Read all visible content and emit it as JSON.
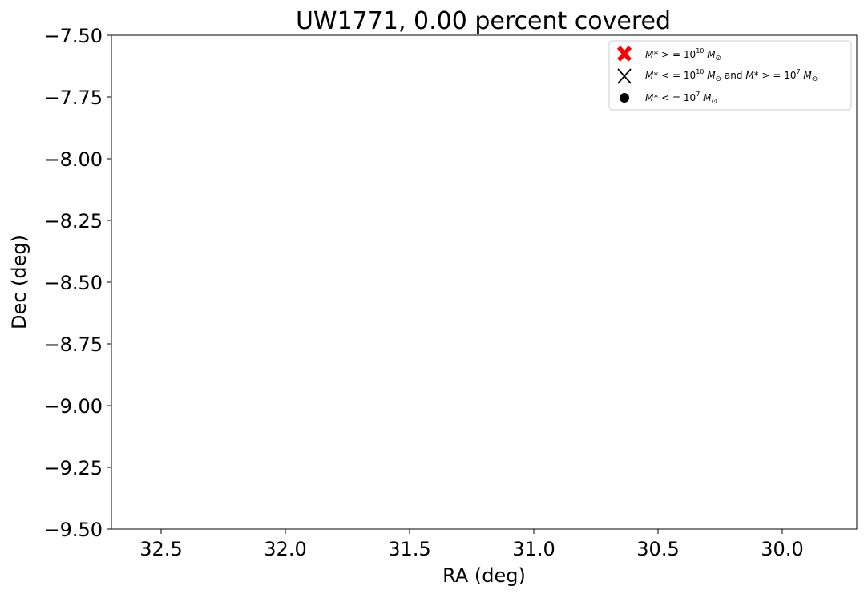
{
  "chart_data": {
    "type": "scatter",
    "title": "UW1771, 0.00 percent covered",
    "xlabel": "RA (deg)",
    "ylabel": "Dec (deg)",
    "xlim": [
      32.7,
      29.7
    ],
    "ylim": [
      -9.5,
      -7.5
    ],
    "x_inverted": true,
    "xticks": [
      32.5,
      32.0,
      31.5,
      31.0,
      30.5,
      30.0
    ],
    "xtick_labels": [
      "32.5",
      "32.0",
      "31.5",
      "31.0",
      "30.5",
      "30.0"
    ],
    "yticks": [
      -7.5,
      -7.75,
      -8.0,
      -8.25,
      -8.5,
      -8.75,
      -9.0,
      -9.25,
      -9.5
    ],
    "ytick_labels": [
      "−7.50",
      "−7.75",
      "−8.00",
      "−8.25",
      "−8.50",
      "−8.75",
      "−9.00",
      "−9.25",
      "−9.50"
    ],
    "grid": false,
    "legend_position": "top-right",
    "series": [
      {
        "name": "M* > = 10^10 M☉",
        "marker": "filled-x",
        "color": "#ff0000",
        "x": [],
        "y": []
      },
      {
        "name": "M* < = 10^10 M☉ and M* > = 10^7 M☉",
        "marker": "x",
        "color": "#000000",
        "x": [],
        "y": []
      },
      {
        "name": "M* < = 10^7 M☉",
        "marker": "circle",
        "color": "#000000",
        "x": [],
        "y": []
      }
    ]
  }
}
